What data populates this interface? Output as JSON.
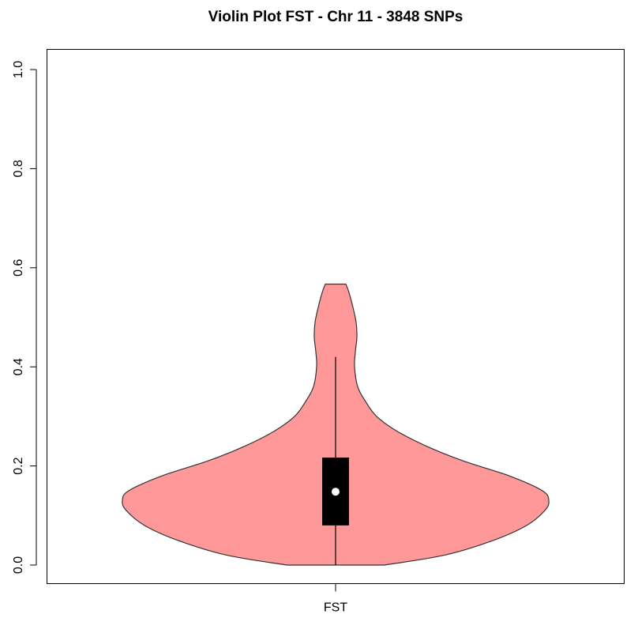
{
  "chart_data": {
    "type": "violin",
    "title": "Violin Plot FST - Chr 11 - 3848 SNPs",
    "xlabel": "",
    "ylabel": "",
    "categories": [
      "FST"
    ],
    "ylim": [
      0,
      1.0
    ],
    "yticks": [
      {
        "value": 0.0,
        "label": "0.0"
      },
      {
        "value": 0.2,
        "label": "0.2"
      },
      {
        "value": 0.4,
        "label": "0.4"
      },
      {
        "value": 0.6,
        "label": "0.6"
      },
      {
        "value": 0.8,
        "label": "0.8"
      },
      {
        "value": 1.0,
        "label": "1.0"
      }
    ],
    "grid": false,
    "legend": "none",
    "violin": {
      "fill_color": "#ff9999",
      "outline_color": "#333333",
      "density_profile": [
        {
          "y": 0.0,
          "halfwidth": 0.62
        },
        {
          "y": 0.02,
          "halfwidth": 1.38
        },
        {
          "y": 0.05,
          "halfwidth": 2.0
        },
        {
          "y": 0.08,
          "halfwidth": 2.42
        },
        {
          "y": 0.11,
          "halfwidth": 2.65
        },
        {
          "y": 0.13,
          "halfwidth": 2.7
        },
        {
          "y": 0.15,
          "halfwidth": 2.62
        },
        {
          "y": 0.18,
          "halfwidth": 2.2
        },
        {
          "y": 0.21,
          "halfwidth": 1.62
        },
        {
          "y": 0.24,
          "halfwidth": 1.15
        },
        {
          "y": 0.27,
          "halfwidth": 0.78
        },
        {
          "y": 0.3,
          "halfwidth": 0.52
        },
        {
          "y": 0.33,
          "halfwidth": 0.38
        },
        {
          "y": 0.36,
          "halfwidth": 0.28
        },
        {
          "y": 0.4,
          "halfwidth": 0.24
        },
        {
          "y": 0.43,
          "halfwidth": 0.25
        },
        {
          "y": 0.46,
          "halfwidth": 0.27
        },
        {
          "y": 0.49,
          "halfwidth": 0.26
        },
        {
          "y": 0.52,
          "halfwidth": 0.22
        },
        {
          "y": 0.55,
          "halfwidth": 0.17
        },
        {
          "y": 0.567,
          "halfwidth": 0.13
        }
      ]
    },
    "box": {
      "q1": 0.08,
      "median": 0.148,
      "q3": 0.217,
      "whisker_low": 0.0,
      "whisker_high": 0.42,
      "fill_color": "#000000",
      "median_color": "#ffffff"
    }
  }
}
